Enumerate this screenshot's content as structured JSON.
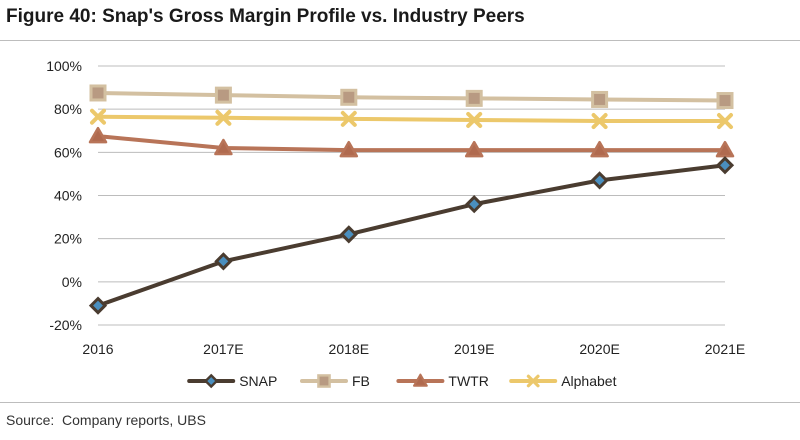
{
  "figure_title": "Figure 40: Snap's Gross Margin Profile vs. Industry Peers",
  "source": "Source:  Company reports, UBS",
  "chart_data": {
    "type": "line",
    "title": "Figure 40: Snap's Gross Margin Profile vs. Industry Peers",
    "xlabel": "",
    "ylabel": "",
    "categories": [
      "2016",
      "2017E",
      "2018E",
      "2019E",
      "2020E",
      "2021E"
    ],
    "y_ticks": [
      "100%",
      "80%",
      "60%",
      "40%",
      "20%",
      "0%",
      "-20%"
    ],
    "ylim": [
      -20,
      100
    ],
    "grid": true,
    "legend_position": "bottom",
    "series": [
      {
        "name": "SNAP",
        "values": [
          -11,
          9.5,
          22,
          36,
          47,
          54
        ],
        "color": "#4a3c30",
        "marker": "diamond",
        "marker_fill": "#4a8fbf"
      },
      {
        "name": "FB",
        "values": [
          87.5,
          86.5,
          85.5,
          85,
          84.5,
          84
        ],
        "color": "#d3c0a1",
        "marker": "square",
        "marker_fill": "#b89a82"
      },
      {
        "name": "TWTR",
        "values": [
          67.5,
          62,
          61,
          61,
          61,
          61
        ],
        "color": "#b87458",
        "marker": "triangle",
        "marker_fill": "#b06a4f"
      },
      {
        "name": "Alphabet",
        "values": [
          76.5,
          76,
          75.5,
          75,
          74.5,
          74.5
        ],
        "color": "#ecc86b",
        "marker": "x",
        "marker_fill": "#ecc86b"
      }
    ]
  }
}
